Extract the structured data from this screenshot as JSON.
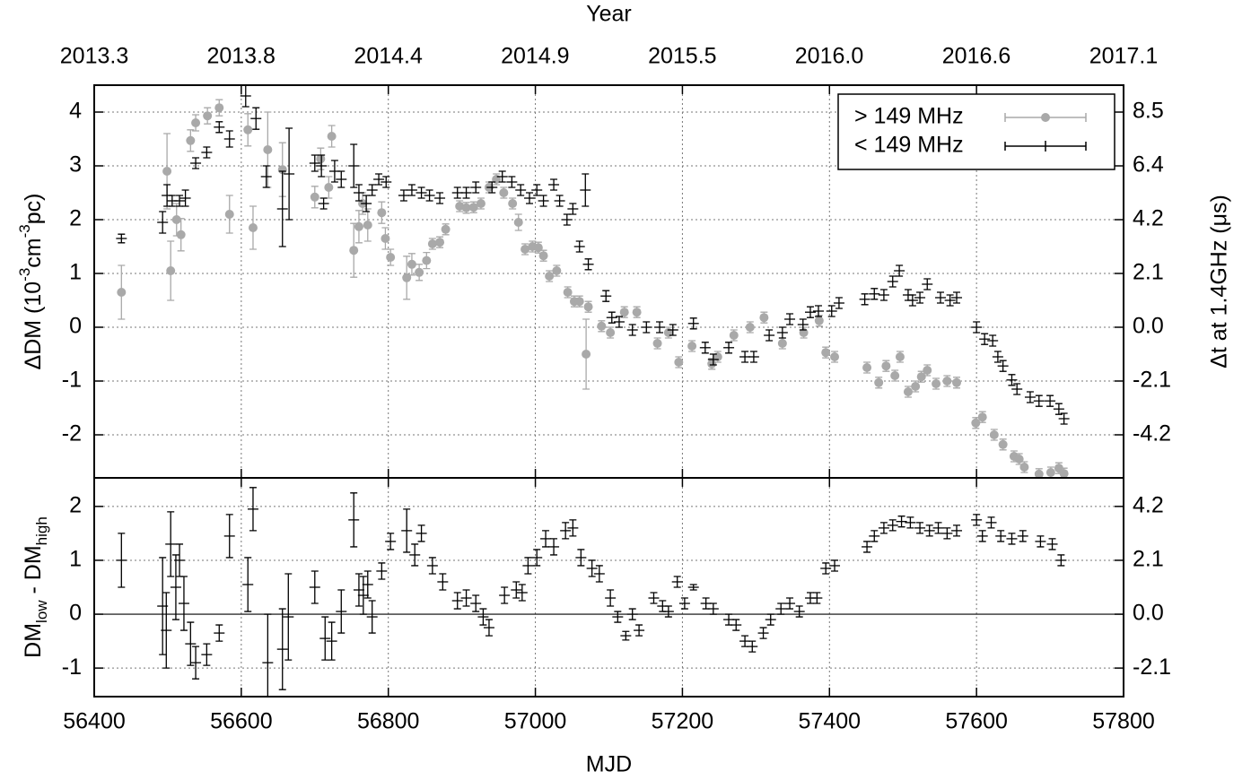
{
  "chart_data": [
    {
      "type": "errorbar",
      "ylabel": [
        {
          "text": "ΔDM (10"
        },
        {
          "sup": "-3"
        },
        {
          "text": "cm"
        },
        {
          "sup": "-3"
        },
        {
          "text": "pc)"
        }
      ],
      "y2label": "Δt at 1.4GHz (μs)",
      "x2label": "Year",
      "x2lim": [
        2013.294,
        2017.127
      ],
      "x2ticks": [
        {
          "value": 2013.294,
          "label": "2013.3"
        },
        {
          "value": 2013.841,
          "label": "2013.8"
        },
        {
          "value": 2014.389,
          "label": "2014.4"
        },
        {
          "value": 2014.936,
          "label": "2014.9"
        },
        {
          "value": 2015.484,
          "label": "2015.5"
        },
        {
          "value": 2016.031,
          "label": "2016.0"
        },
        {
          "value": 2016.579,
          "label": "2016.6"
        },
        {
          "value": 2017.127,
          "label": "2017.1"
        }
      ],
      "ylim": [
        -2.8,
        4.5
      ],
      "yticks": [
        -2,
        -1,
        0,
        1,
        2,
        3,
        4
      ],
      "y2lim": [
        -5.928,
        9.527
      ],
      "y2ticks": [
        {
          "value": -4.234,
          "label": "-4.2"
        },
        {
          "value": -2.117,
          "label": "-2.1"
        },
        {
          "value": 0,
          "label": "0.0"
        },
        {
          "value": 2.117,
          "label": "2.1"
        },
        {
          "value": 4.234,
          "label": "4.2"
        },
        {
          "value": 6.351,
          "label": "6.4"
        },
        {
          "value": 8.468,
          "label": "8.5"
        }
      ],
      "grid": true,
      "legend": "upper right",
      "series": [
        {
          "name": "> 149 MHz",
          "color": "#a9a9a9",
          "marker": "circle",
          "x": [
            56437,
            56499,
            56504,
            56512,
            56518,
            56531,
            56538,
            56554,
            56570,
            56584,
            56609,
            56616,
            56636,
            56656,
            56700,
            56708,
            56719,
            56723,
            56753,
            56760,
            56765,
            56772,
            56791,
            56796,
            56803,
            56825,
            56832,
            56842,
            56852,
            56860,
            56870,
            56878,
            56897,
            56906,
            56916,
            56926,
            56937,
            56947,
            56957,
            56969,
            56977,
            56986,
            56996,
            57004,
            57011,
            57019,
            57029,
            57044,
            57053,
            57060,
            57069,
            57072,
            57090,
            57102,
            57121,
            57138,
            57166,
            57181,
            57195,
            57213,
            57240,
            57248,
            57270,
            57292,
            57311,
            57336,
            57365,
            57386,
            57395,
            57407,
            57451,
            57467,
            57477,
            57489,
            57496,
            57507,
            57517,
            57525,
            57533,
            57545,
            57560,
            57573,
            57599,
            57608,
            57624,
            57636,
            57651,
            57658,
            57665,
            57685,
            57701,
            57712,
            57719
          ],
          "values": [
            0.65,
            2.9,
            1.05,
            2.0,
            1.72,
            3.47,
            3.8,
            3.93,
            4.08,
            2.1,
            3.67,
            1.85,
            3.3,
            2.93,
            2.42,
            3.13,
            2.6,
            3.55,
            1.43,
            1.87,
            2.3,
            1.9,
            2.13,
            1.65,
            1.3,
            0.92,
            1.17,
            1.02,
            1.24,
            1.55,
            1.58,
            1.82,
            2.25,
            2.22,
            2.23,
            2.3,
            2.6,
            2.75,
            2.5,
            2.3,
            1.95,
            1.45,
            1.5,
            1.48,
            1.33,
            0.95,
            1.05,
            0.65,
            0.48,
            0.48,
            -0.5,
            0.38,
            0.02,
            -0.1,
            0.28,
            0.28,
            -0.3,
            -0.1,
            -0.65,
            -0.35,
            -0.68,
            -0.55,
            -0.15,
            0.0,
            0.18,
            -0.3,
            -0.1,
            0.12,
            -0.47,
            -0.55,
            -0.75,
            -1.03,
            -0.72,
            -0.9,
            -0.55,
            -1.2,
            -1.1,
            -0.92,
            -0.8,
            -1.05,
            -1.0,
            -1.03,
            -1.78,
            -1.67,
            -2.0,
            -2.18,
            -2.4,
            -2.45,
            -2.6,
            -2.73,
            -2.7,
            -2.62,
            -2.72
          ],
          "errors": [
            0.5,
            0.7,
            0.55,
            0.3,
            0.3,
            0.2,
            0.15,
            0.15,
            0.15,
            0.35,
            0.3,
            0.4,
            0.7,
            0.5,
            0.2,
            0.2,
            0.2,
            0.2,
            0.5,
            0.3,
            0.2,
            0.3,
            0.2,
            0.2,
            0.15,
            0.4,
            0.2,
            0.15,
            0.15,
            0.1,
            0.1,
            0.1,
            0.1,
            0.1,
            0.1,
            0.1,
            0.1,
            0.1,
            0.1,
            0.1,
            0.15,
            0.1,
            0.1,
            0.1,
            0.1,
            0.1,
            0.1,
            0.1,
            0.1,
            0.1,
            0.65,
            0.1,
            0.1,
            0.1,
            0.1,
            0.1,
            0.1,
            0.1,
            0.1,
            0.1,
            0.1,
            0.1,
            0.1,
            0.1,
            0.1,
            0.1,
            0.1,
            0.1,
            0.1,
            0.1,
            0.1,
            0.1,
            0.1,
            0.1,
            0.1,
            0.1,
            0.1,
            0.1,
            0.1,
            0.1,
            0.1,
            0.1,
            0.1,
            0.1,
            0.1,
            0.1,
            0.1,
            0.1,
            0.1,
            0.1,
            0.1,
            0.1,
            0.1
          ]
        },
        {
          "name": "< 149 MHz",
          "color": "#000000",
          "marker": "plus",
          "x": [
            56437,
            56493,
            56499,
            56506,
            56516,
            56524,
            56538,
            56553,
            56570,
            56584,
            56606,
            56620,
            56634,
            56656,
            56665,
            56700,
            56709,
            56712,
            56727,
            56736,
            56753,
            56760,
            56770,
            56778,
            56787,
            56797,
            56821,
            56832,
            56845,
            56856,
            56870,
            56894,
            56906,
            56919,
            56941,
            56955,
            56968,
            56980,
            56992,
            57002,
            57011,
            57025,
            57033,
            57043,
            57051,
            57060,
            57068,
            57072,
            57096,
            57104,
            57114,
            57132,
            57151,
            57169,
            57187,
            57215,
            57231,
            57242,
            57263,
            57285,
            57297,
            57318,
            57336,
            57346,
            57364,
            57374,
            57385,
            57403,
            57413,
            57448,
            57461,
            57474,
            57486,
            57495,
            57507,
            57513,
            57523,
            57533,
            57551,
            57564,
            57573,
            57600,
            57611,
            57622,
            57629,
            57636,
            57648,
            57655,
            57673,
            57685,
            57700,
            57712,
            57719
          ],
          "values": [
            1.65,
            1.95,
            2.45,
            2.35,
            2.35,
            2.4,
            3.05,
            3.25,
            3.72,
            3.5,
            4.3,
            3.88,
            2.8,
            2.2,
            2.85,
            3.05,
            3.0,
            2.3,
            2.9,
            2.75,
            3.0,
            2.5,
            2.3,
            2.55,
            2.75,
            2.7,
            2.45,
            2.55,
            2.5,
            2.45,
            2.4,
            2.5,
            2.5,
            2.6,
            2.6,
            2.8,
            2.7,
            2.55,
            2.4,
            2.55,
            2.35,
            2.65,
            2.35,
            2.0,
            2.2,
            1.5,
            2.55,
            1.17,
            0.58,
            0.18,
            0.1,
            -0.05,
            0.0,
            0.0,
            -0.05,
            0.07,
            -0.38,
            -0.6,
            -0.38,
            -0.55,
            -0.55,
            -0.15,
            -0.1,
            0.15,
            0.05,
            0.28,
            0.3,
            0.3,
            0.45,
            0.52,
            0.62,
            0.6,
            0.85,
            1.05,
            0.6,
            0.5,
            0.55,
            0.8,
            0.55,
            0.5,
            0.55,
            0.0,
            -0.22,
            -0.25,
            -0.55,
            -0.72,
            -0.98,
            -1.15,
            -1.3,
            -1.37,
            -1.37,
            -1.52,
            -1.7
          ],
          "errors": [
            0.08,
            0.2,
            0.2,
            0.1,
            0.1,
            0.15,
            0.1,
            0.1,
            0.1,
            0.15,
            0.2,
            0.2,
            0.2,
            0.7,
            0.85,
            0.15,
            0.2,
            0.1,
            0.2,
            0.15,
            0.4,
            0.15,
            0.15,
            0.1,
            0.1,
            0.1,
            0.1,
            0.1,
            0.1,
            0.1,
            0.1,
            0.1,
            0.1,
            0.1,
            0.1,
            0.1,
            0.1,
            0.1,
            0.1,
            0.1,
            0.1,
            0.1,
            0.1,
            0.1,
            0.1,
            0.1,
            0.3,
            0.1,
            0.1,
            0.1,
            0.1,
            0.1,
            0.1,
            0.1,
            0.1,
            0.1,
            0.1,
            0.1,
            0.1,
            0.1,
            0.1,
            0.1,
            0.1,
            0.1,
            0.1,
            0.1,
            0.1,
            0.1,
            0.1,
            0.1,
            0.1,
            0.1,
            0.1,
            0.1,
            0.1,
            0.1,
            0.1,
            0.1,
            0.1,
            0.1,
            0.1,
            0.1,
            0.1,
            0.1,
            0.1,
            0.1,
            0.1,
            0.1,
            0.1,
            0.1,
            0.1,
            0.1,
            0.1
          ]
        }
      ]
    },
    {
      "type": "errorbar",
      "xlabel": "MJD",
      "ylabel": [
        {
          "text": "DM"
        },
        {
          "sub": "low"
        },
        {
          "text": " - DM"
        },
        {
          "sub": "high"
        }
      ],
      "xlim": [
        56400,
        57800
      ],
      "xticks": [
        56400,
        56600,
        56800,
        57000,
        57200,
        57400,
        57600,
        57800
      ],
      "ylim": [
        -1.53,
        2.53
      ],
      "yticks": [
        -1,
        0,
        1,
        2
      ],
      "y2lim": [
        -3.239,
        5.356
      ],
      "y2ticks": [
        {
          "value": -2.117,
          "label": "-2.1"
        },
        {
          "value": 0,
          "label": "0.0"
        },
        {
          "value": 2.117,
          "label": "2.1"
        },
        {
          "value": 4.234,
          "label": "4.2"
        }
      ],
      "grid": true,
      "zero_line": true,
      "series": [
        {
          "color": "#000000",
          "marker": "plus",
          "x": [
            56437,
            56493,
            56498,
            56504,
            56511,
            56516,
            56522,
            56531,
            56538,
            56553,
            56570,
            56584,
            56609,
            56616,
            56636,
            56656,
            56664,
            56700,
            56714,
            56723,
            56736,
            56753,
            56760,
            56766,
            56772,
            56778,
            56791,
            56803,
            56825,
            56836,
            56845,
            56860,
            56874,
            56894,
            56906,
            56919,
            56929,
            56937,
            56958,
            56974,
            56982,
            56990,
            57002,
            57014,
            57025,
            57041,
            57051,
            57062,
            57077,
            57087,
            57102,
            57112,
            57123,
            57132,
            57141,
            57161,
            57173,
            57181,
            57193,
            57203,
            57215,
            57232,
            57242,
            57263,
            57273,
            57285,
            57295,
            57310,
            57320,
            57334,
            57346,
            57359,
            57374,
            57383,
            57395,
            57407,
            57451,
            57461,
            57474,
            57486,
            57498,
            57510,
            57523,
            57536,
            57548,
            57560,
            57573,
            57600,
            57608,
            57620,
            57633,
            57648,
            57663,
            57687,
            57703,
            57715
          ],
          "values": [
            1.0,
            0.15,
            -0.3,
            1.3,
            0.5,
            1.0,
            0.2,
            -0.55,
            -0.9,
            -0.75,
            -0.35,
            1.45,
            0.55,
            1.95,
            -0.9,
            -0.65,
            -0.05,
            0.5,
            -0.45,
            -0.5,
            0.05,
            1.75,
            0.45,
            0.35,
            0.55,
            -0.05,
            0.8,
            1.35,
            1.55,
            1.1,
            1.5,
            0.9,
            0.6,
            0.25,
            0.3,
            0.2,
            -0.05,
            -0.25,
            0.35,
            0.45,
            0.4,
            0.9,
            1.05,
            1.4,
            1.25,
            1.55,
            1.6,
            1.05,
            0.85,
            0.75,
            0.3,
            -0.05,
            -0.4,
            0.0,
            -0.3,
            0.3,
            0.15,
            0.05,
            0.6,
            0.2,
            0.5,
            0.2,
            0.1,
            -0.1,
            -0.2,
            -0.5,
            -0.6,
            -0.35,
            -0.1,
            0.1,
            0.2,
            0.05,
            0.3,
            0.3,
            0.85,
            0.9,
            1.25,
            1.45,
            1.6,
            1.65,
            1.72,
            1.7,
            1.6,
            1.55,
            1.6,
            1.5,
            1.55,
            1.75,
            1.45,
            1.7,
            1.45,
            1.4,
            1.45,
            1.35,
            1.3,
            1.0
          ],
          "errors": [
            0.5,
            0.9,
            0.7,
            0.6,
            0.6,
            0.3,
            0.5,
            0.4,
            0.3,
            0.2,
            0.15,
            0.4,
            0.5,
            0.4,
            0.9,
            0.75,
            0.8,
            0.3,
            0.4,
            0.35,
            0.4,
            0.5,
            0.3,
            0.35,
            0.25,
            0.3,
            0.15,
            0.15,
            0.4,
            0.2,
            0.15,
            0.15,
            0.15,
            0.15,
            0.15,
            0.15,
            0.15,
            0.15,
            0.15,
            0.15,
            0.15,
            0.15,
            0.15,
            0.15,
            0.15,
            0.15,
            0.15,
            0.15,
            0.15,
            0.15,
            0.15,
            0.1,
            0.08,
            0.1,
            0.1,
            0.1,
            0.1,
            0.1,
            0.1,
            0.1,
            0.05,
            0.1,
            0.1,
            0.1,
            0.1,
            0.1,
            0.1,
            0.1,
            0.1,
            0.1,
            0.1,
            0.1,
            0.1,
            0.1,
            0.1,
            0.1,
            0.1,
            0.1,
            0.1,
            0.1,
            0.1,
            0.1,
            0.1,
            0.1,
            0.1,
            0.1,
            0.1,
            0.1,
            0.1,
            0.1,
            0.1,
            0.1,
            0.1,
            0.1,
            0.1,
            0.1
          ]
        }
      ]
    }
  ]
}
